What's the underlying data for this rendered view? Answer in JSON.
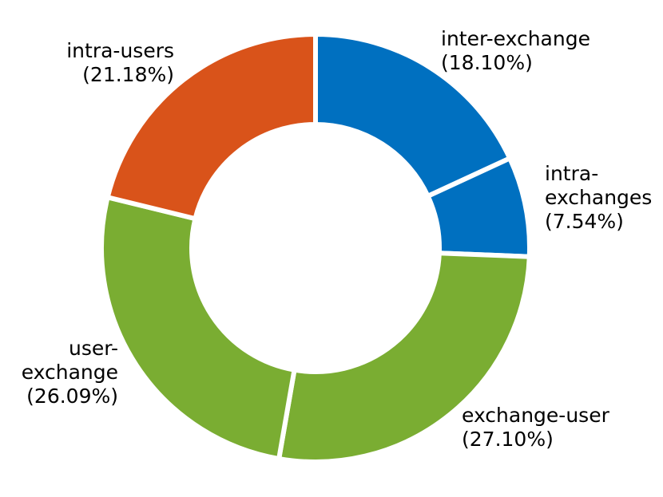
{
  "chart_data": {
    "type": "pie",
    "title": "",
    "slices": [
      {
        "name": "inter-exchange",
        "value": 18.1,
        "display": "(18.10%)",
        "label_lines": [
          "inter-exchange",
          "(18.10%)"
        ],
        "color": "#0070C0"
      },
      {
        "name": "intra-exchanges",
        "value": 7.54,
        "display": "(7.54%)",
        "label_lines": [
          "intra-",
          "exchanges",
          "(7.54%)"
        ],
        "color": "#0070C0"
      },
      {
        "name": "exchange-user",
        "value": 27.1,
        "display": "(27.10%)",
        "label_lines": [
          "exchange-user",
          "(27.10%)"
        ],
        "color": "#7AAD32"
      },
      {
        "name": "user-exchange",
        "value": 26.09,
        "display": "(26.09%)",
        "label_lines": [
          "user-",
          "exchange",
          "(26.09%)"
        ],
        "color": "#7AAD32"
      },
      {
        "name": "intra-users",
        "value": 21.18,
        "display": "(21.18%)",
        "label_lines": [
          "intra-users",
          "(21.18%)"
        ],
        "color": "#D9531A"
      }
    ],
    "legend": "none"
  }
}
